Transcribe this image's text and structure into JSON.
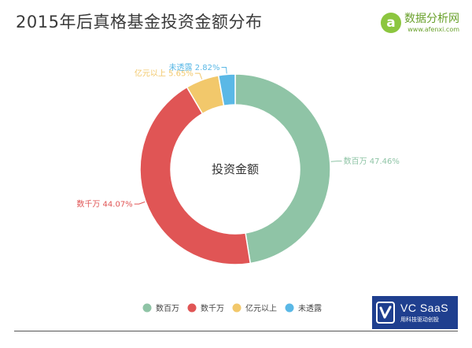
{
  "header": {
    "title": "2015年后真格基金投资金额分布"
  },
  "logo": {
    "name": "数据分析网",
    "url": "www.afenxi.com",
    "badge_letter": "a",
    "color": "#8cc63f"
  },
  "chart_data": {
    "type": "pie",
    "subtype": "donut",
    "title": "2015年后真格基金投资金额分布",
    "center_label": "投资金额",
    "unit": "%",
    "categories": [
      "数百万",
      "数千万",
      "亿元以上",
      "未透露"
    ],
    "values": [
      47.46,
      44.07,
      5.65,
      2.82
    ],
    "colors": [
      "#8fc4a6",
      "#e05555",
      "#f2c86b",
      "#5ab8e6"
    ],
    "data_labels": [
      "数百万 47.46%",
      "数千万 44.07%",
      "亿元以上 5.65%",
      "未透露 2.82%"
    ],
    "legend": {
      "position": "bottom-center",
      "entries": [
        "数百万",
        "数千万",
        "亿元以上",
        "未透露"
      ]
    },
    "start_angle": "12 o'clock",
    "direction": "clockwise"
  },
  "badge": {
    "brand": "VC SaaS",
    "slogan": "用科技驱动创投",
    "color": "#1f3f8f"
  }
}
